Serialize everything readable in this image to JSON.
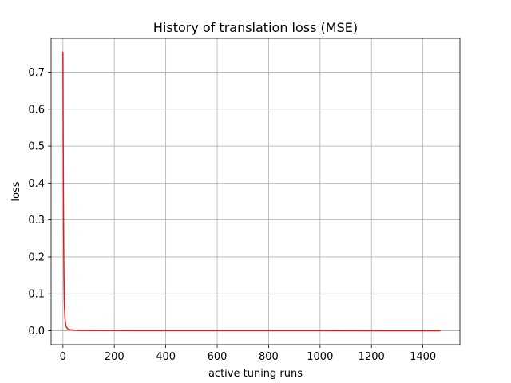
{
  "chart_data": {
    "type": "line",
    "title": "History of translation loss (MSE)",
    "xlabel": "active tuning runs",
    "ylabel": "loss",
    "xlim": [
      -46,
      1544
    ],
    "ylim": [
      -0.0377,
      0.7917
    ],
    "xticks": [
      0,
      200,
      400,
      600,
      800,
      1000,
      1200,
      1400
    ],
    "yticks": [
      0.0,
      0.1,
      0.2,
      0.3,
      0.4,
      0.5,
      0.6,
      0.7
    ],
    "ytick_labels": [
      "0.0",
      "0.1",
      "0.2",
      "0.3",
      "0.4",
      "0.5",
      "0.6",
      "0.7"
    ],
    "grid": true,
    "series": [
      {
        "color": "#e41a1c",
        "x": [
          0,
          1,
          2,
          3,
          4,
          5,
          6,
          8,
          10,
          12,
          15,
          20,
          25,
          30,
          40,
          50,
          75,
          100,
          150,
          200,
          300,
          400,
          600,
          800,
          1000,
          1200,
          1400,
          1468
        ],
        "y": [
          0.755,
          0.52,
          0.35,
          0.23,
          0.15,
          0.1,
          0.065,
          0.035,
          0.02,
          0.013,
          0.008,
          0.005,
          0.0035,
          0.0028,
          0.002,
          0.0015,
          0.001,
          0.0008,
          0.0006,
          0.0005,
          0.0004,
          0.0004,
          0.0003,
          0.0003,
          0.0003,
          0.0002,
          0.0002,
          0.0002
        ]
      }
    ]
  }
}
